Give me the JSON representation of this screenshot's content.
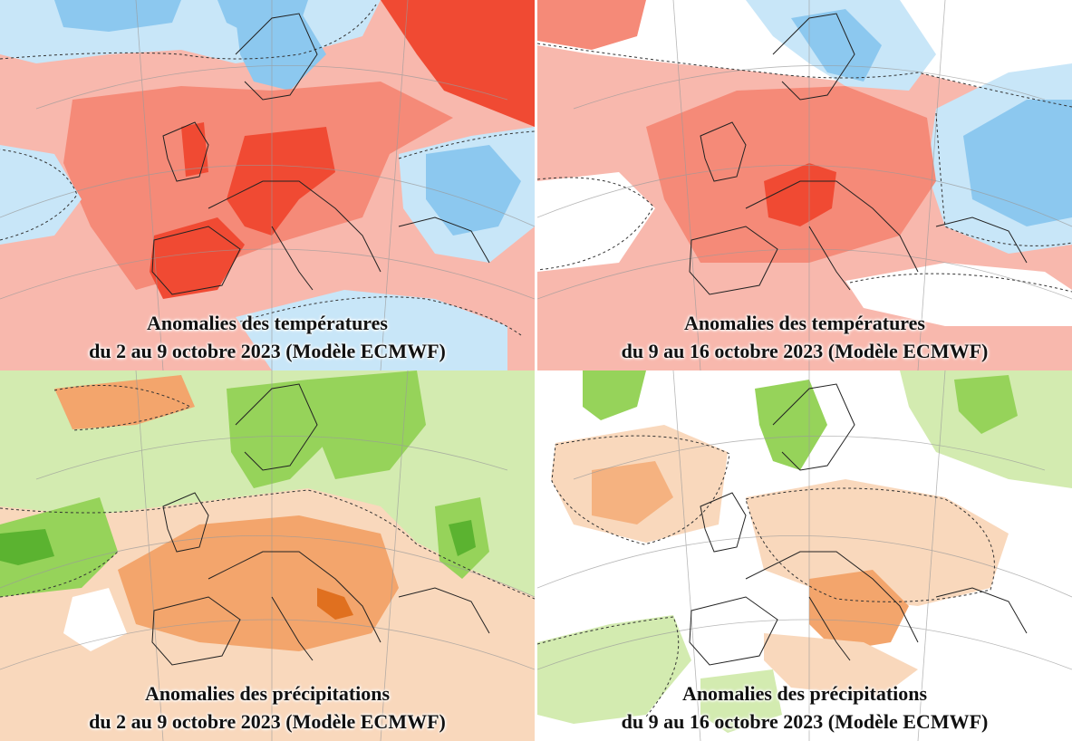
{
  "panels": [
    {
      "caption_line1": "Anomalies des températures",
      "caption_line2": "du 2 au 9 octobre 2023 (Modèle ECMWF)",
      "variable": "temperature"
    },
    {
      "caption_line1": "Anomalies des températures",
      "caption_line2": "du 9 au 16 octobre 2023 (Modèle ECMWF)",
      "variable": "temperature"
    },
    {
      "caption_line1": "Anomalies des précipitations",
      "caption_line2": "du 2 au 9 octobre 2023 (Modèle ECMWF)",
      "variable": "precipitation"
    },
    {
      "caption_line1": "Anomalies des précipitations",
      "caption_line2": "du 9 au 16 octobre 2023 (Modèle ECMWF)",
      "variable": "precipitation"
    }
  ],
  "colors": {
    "warm_strong": "#f04a33",
    "warm_medium": "#f58a78",
    "warm_light": "#f8b8ad",
    "cold_light": "#c8e6f8",
    "cold_medium": "#8cc8ef",
    "cold_strong": "#3f9ee6",
    "dry_light": "#f9d8bc",
    "dry_medium": "#f3a56c",
    "wet_light": "#d3ebb0",
    "wet_medium": "#96d35a",
    "wet_strong": "#5bb330"
  }
}
